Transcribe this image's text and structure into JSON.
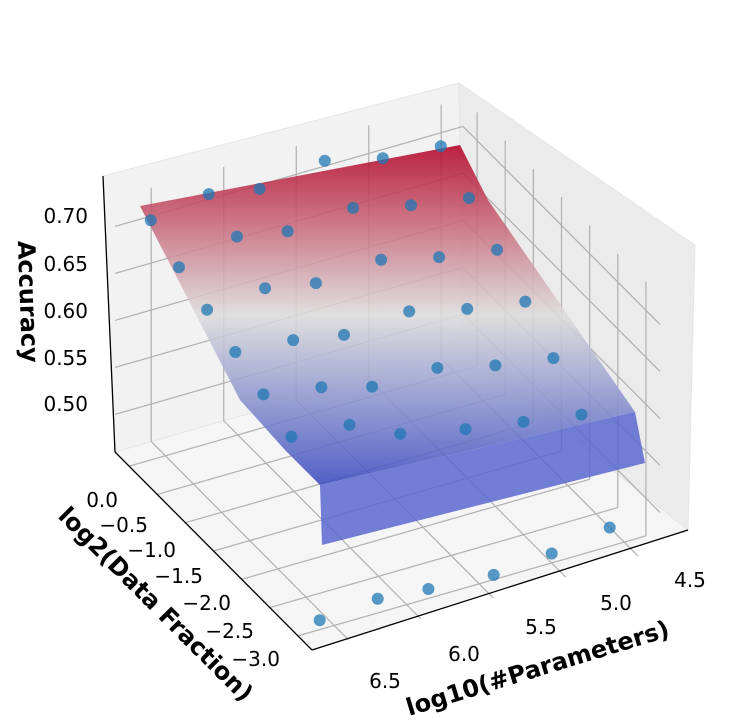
{
  "chart_data": {
    "type": "surface3d_scatter",
    "title": "",
    "xlabel": "log10(#Parameters)",
    "ylabel": "log2(Data Fraction)",
    "zlabel": "Accuracy",
    "x_ticks": [
      "4.5",
      "5.0",
      "5.5",
      "6.0",
      "6.5"
    ],
    "y_ticks": [
      "0.0",
      "−0.5",
      "−1.0",
      "−1.5",
      "−2.0",
      "−2.5",
      "−3.0"
    ],
    "z_ticks": [
      "0.50",
      "0.55",
      "0.60",
      "0.65",
      "0.70"
    ],
    "colormap": [
      "#3b4cc0",
      "#dddcdc",
      "#b40426"
    ],
    "point_color": "#1f77b4",
    "points": [
      {
        "p": 6.6,
        "d": 0.0,
        "acc": 0.715
      },
      {
        "p": 6.6,
        "d": -0.5,
        "acc": 0.695
      },
      {
        "p": 6.6,
        "d": -1.0,
        "acc": 0.68
      },
      {
        "p": 6.6,
        "d": -1.5,
        "acc": 0.665
      },
      {
        "p": 6.6,
        "d": -2.0,
        "acc": 0.65
      },
      {
        "p": 6.6,
        "d": -2.5,
        "acc": 0.635
      },
      {
        "p": 6.6,
        "d": -3.0,
        "acc": 0.47
      },
      {
        "p": 6.2,
        "d": 0.0,
        "acc": 0.725
      },
      {
        "p": 6.2,
        "d": -0.5,
        "acc": 0.71
      },
      {
        "p": 6.2,
        "d": -1.0,
        "acc": 0.685
      },
      {
        "p": 6.2,
        "d": -1.5,
        "acc": 0.66
      },
      {
        "p": 6.2,
        "d": -2.0,
        "acc": 0.64
      },
      {
        "p": 6.2,
        "d": -2.5,
        "acc": 0.63
      },
      {
        "p": 6.2,
        "d": -3.0,
        "acc": 0.475
      },
      {
        "p": 5.85,
        "d": 0.0,
        "acc": 0.715
      },
      {
        "p": 5.85,
        "d": -0.5,
        "acc": 0.7
      },
      {
        "p": 5.85,
        "d": -1.0,
        "acc": 0.675
      },
      {
        "p": 5.85,
        "d": -1.5,
        "acc": 0.65
      },
      {
        "p": 5.85,
        "d": -2.0,
        "acc": 0.625
      },
      {
        "p": 5.85,
        "d": -2.5,
        "acc": 0.605
      },
      {
        "p": 5.85,
        "d": -3.0,
        "acc": 0.47
      },
      {
        "p": 5.4,
        "d": 0.0,
        "acc": 0.725
      },
      {
        "p": 5.4,
        "d": -0.5,
        "acc": 0.705
      },
      {
        "p": 5.4,
        "d": -1.0,
        "acc": 0.68
      },
      {
        "p": 5.4,
        "d": -1.5,
        "acc": 0.655
      },
      {
        "p": 5.4,
        "d": -2.0,
        "acc": 0.625
      },
      {
        "p": 5.4,
        "d": -2.5,
        "acc": 0.59
      },
      {
        "p": 5.4,
        "d": -3.0,
        "acc": 0.465
      },
      {
        "p": 5.0,
        "d": 0.0,
        "acc": 0.71
      },
      {
        "p": 5.0,
        "d": -0.5,
        "acc": 0.69
      },
      {
        "p": 5.0,
        "d": -1.0,
        "acc": 0.665
      },
      {
        "p": 5.0,
        "d": -1.5,
        "acc": 0.64
      },
      {
        "p": 5.0,
        "d": -2.0,
        "acc": 0.61
      },
      {
        "p": 5.0,
        "d": -2.5,
        "acc": 0.58
      },
      {
        "p": 5.0,
        "d": -3.0,
        "acc": 0.47
      },
      {
        "p": 4.6,
        "d": 0.0,
        "acc": 0.705
      },
      {
        "p": 4.6,
        "d": -0.5,
        "acc": 0.68
      },
      {
        "p": 4.6,
        "d": -1.0,
        "acc": 0.655
      },
      {
        "p": 4.6,
        "d": -1.5,
        "acc": 0.63
      },
      {
        "p": 4.6,
        "d": -2.0,
        "acc": 0.6
      },
      {
        "p": 4.6,
        "d": -2.5,
        "acc": 0.57
      },
      {
        "p": 4.6,
        "d": -3.0,
        "acc": 0.48
      }
    ]
  }
}
